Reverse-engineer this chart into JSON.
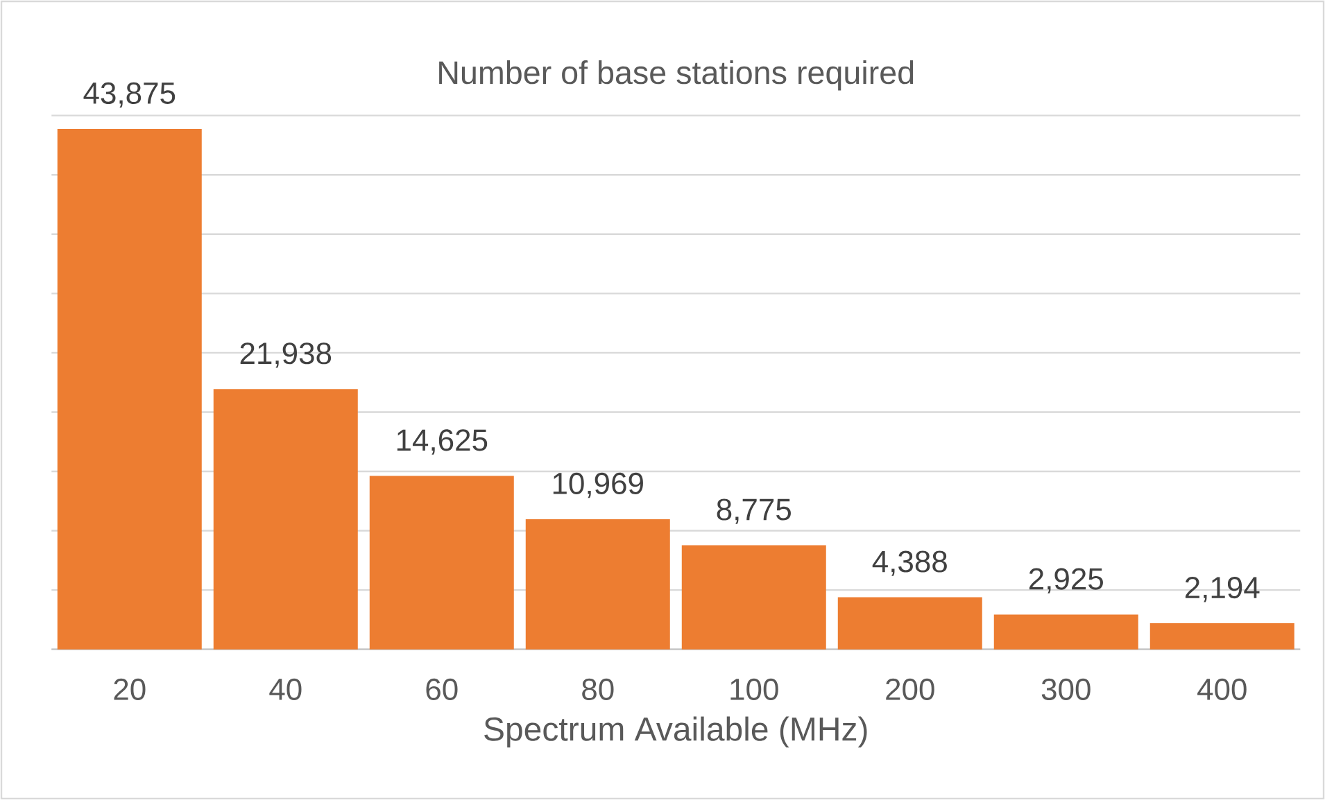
{
  "chart_data": {
    "type": "bar",
    "title": "Number of base stations required",
    "xlabel": "Spectrum Available (MHz)",
    "categories": [
      "20",
      "40",
      "60",
      "80",
      "100",
      "200",
      "300",
      "400"
    ],
    "values": [
      43875,
      21938,
      14625,
      10969,
      8775,
      4388,
      2925,
      2194
    ],
    "color": "#ed7d31",
    "ylim": [
      0,
      45000
    ],
    "yticks": [
      {
        "value": 0,
        "label": null
      },
      {
        "value": 5000,
        "label": null
      },
      {
        "value": 10000,
        "label": null
      },
      {
        "value": 15000,
        "label": null
      },
      {
        "value": 20000,
        "label": null
      },
      {
        "value": 25000,
        "label": null
      },
      {
        "value": 30000,
        "label": null
      },
      {
        "value": 35000,
        "label": null
      },
      {
        "value": 40000,
        "label": null
      },
      {
        "value": 45000,
        "label": null
      }
    ],
    "value_labels": [
      "43,875",
      "21,938",
      "14,625",
      "10,969",
      "8,775",
      "4,388",
      "2,925",
      "2,194"
    ],
    "grid": "y",
    "tick_labels": "x"
  }
}
